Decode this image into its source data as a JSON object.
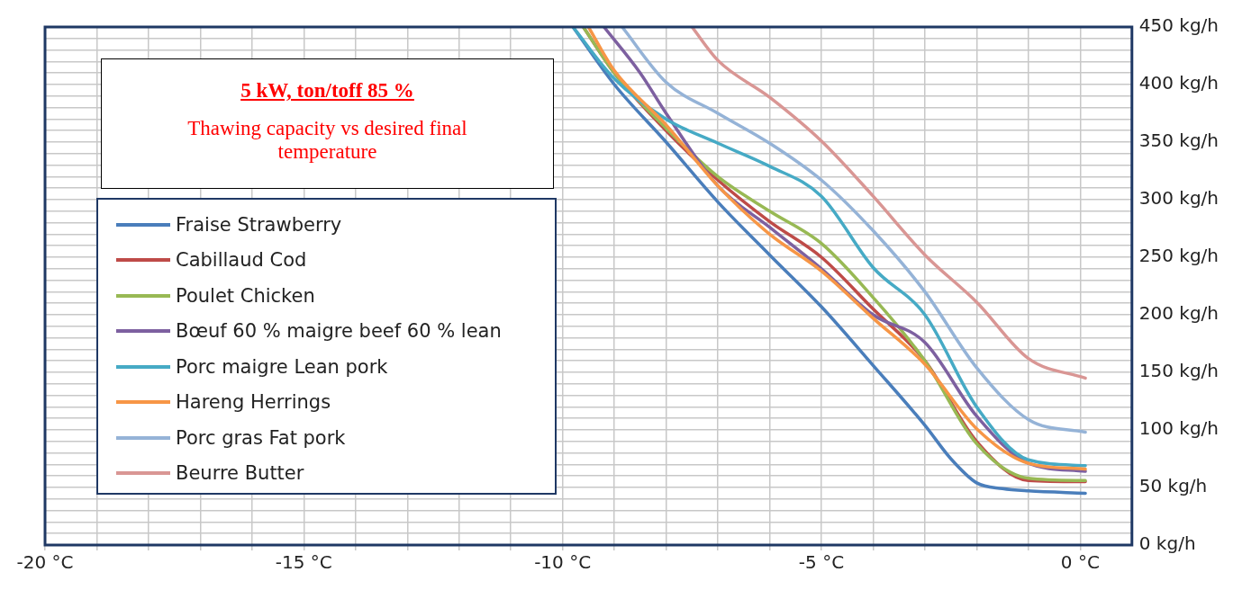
{
  "chart_data": {
    "type": "line",
    "title": "5 kW,  ton/toff 85 %",
    "subtitle": "Thawing capacity vs desired final temperature",
    "xlim": [
      -20,
      1
    ],
    "ylim": [
      0,
      450
    ],
    "xticks": [
      {
        "value": -20,
        "label": "-20 °C"
      },
      {
        "value": -19,
        "label": null
      },
      {
        "value": -18,
        "label": null
      },
      {
        "value": -17,
        "label": null
      },
      {
        "value": -16,
        "label": null
      },
      {
        "value": -15,
        "label": "-15 °C"
      },
      {
        "value": -14,
        "label": null
      },
      {
        "value": -13,
        "label": null
      },
      {
        "value": -12,
        "label": null
      },
      {
        "value": -11,
        "label": null
      },
      {
        "value": -10,
        "label": "-10 °C"
      },
      {
        "value": -9,
        "label": null
      },
      {
        "value": -8,
        "label": null
      },
      {
        "value": -7,
        "label": null
      },
      {
        "value": -6,
        "label": null
      },
      {
        "value": -5,
        "label": "-5 °C"
      },
      {
        "value": -4,
        "label": null
      },
      {
        "value": -3,
        "label": null
      },
      {
        "value": -2,
        "label": null
      },
      {
        "value": -1,
        "label": null
      },
      {
        "value": 0,
        "label": "0 °C"
      }
    ],
    "yticks": [
      {
        "value": 0,
        "label": "0 kg/h"
      },
      {
        "value": 10,
        "label": null
      },
      {
        "value": 20,
        "label": null
      },
      {
        "value": 30,
        "label": null
      },
      {
        "value": 40,
        "label": null
      },
      {
        "value": 50,
        "label": "50 kg/h"
      },
      {
        "value": 60,
        "label": null
      },
      {
        "value": 70,
        "label": null
      },
      {
        "value": 80,
        "label": null
      },
      {
        "value": 90,
        "label": null
      },
      {
        "value": 100,
        "label": "100 kg/h"
      },
      {
        "value": 110,
        "label": null
      },
      {
        "value": 120,
        "label": null
      },
      {
        "value": 130,
        "label": null
      },
      {
        "value": 140,
        "label": null
      },
      {
        "value": 150,
        "label": "150 kg/h"
      },
      {
        "value": 160,
        "label": null
      },
      {
        "value": 170,
        "label": null
      },
      {
        "value": 180,
        "label": null
      },
      {
        "value": 190,
        "label": null
      },
      {
        "value": 200,
        "label": "200 kg/h"
      },
      {
        "value": 210,
        "label": null
      },
      {
        "value": 220,
        "label": null
      },
      {
        "value": 230,
        "label": null
      },
      {
        "value": 240,
        "label": null
      },
      {
        "value": 250,
        "label": "250 kg/h"
      },
      {
        "value": 260,
        "label": null
      },
      {
        "value": 270,
        "label": null
      },
      {
        "value": 280,
        "label": null
      },
      {
        "value": 290,
        "label": null
      },
      {
        "value": 300,
        "label": "300 kg/h"
      },
      {
        "value": 310,
        "label": null
      },
      {
        "value": 320,
        "label": null
      },
      {
        "value": 330,
        "label": null
      },
      {
        "value": 340,
        "label": null
      },
      {
        "value": 350,
        "label": "350 kg/h"
      },
      {
        "value": 360,
        "label": null
      },
      {
        "value": 370,
        "label": null
      },
      {
        "value": 380,
        "label": null
      },
      {
        "value": 390,
        "label": null
      },
      {
        "value": 400,
        "label": "400 kg/h"
      },
      {
        "value": 410,
        "label": null
      },
      {
        "value": 420,
        "label": null
      },
      {
        "value": 430,
        "label": null
      },
      {
        "value": 440,
        "label": null
      },
      {
        "value": 450,
        "label": "450 kg/h"
      }
    ],
    "grid": true,
    "legend": "left",
    "marker": "none",
    "line_style": "solid",
    "series": [
      {
        "name": "Fraise Strawberry",
        "color": "#4a7ebb",
        "x": [
          -9.8,
          -9,
          -8,
          -7,
          -6,
          -5,
          -4,
          -3,
          -2.5,
          -2,
          -1.5,
          -1,
          0.1
        ],
        "values": [
          450,
          400,
          350,
          298,
          252,
          207,
          156,
          104,
          75,
          54,
          49,
          47,
          45
        ]
      },
      {
        "name": "Cabillaud Cod",
        "color": "#be4b48",
        "x": [
          -9.6,
          -9,
          -8,
          -7,
          -6,
          -5,
          -4,
          -3,
          -2,
          -1,
          0.1
        ],
        "values": [
          450,
          410,
          360,
          317,
          281,
          250,
          205,
          160,
          90,
          56,
          55
        ]
      },
      {
        "name": "Poulet Chicken",
        "color": "#98b954",
        "x": [
          -9.6,
          -9,
          -8,
          -7,
          -6,
          -5,
          -4,
          -3,
          -2,
          -1,
          0.1
        ],
        "values": [
          450,
          410,
          362,
          320,
          290,
          262,
          215,
          160,
          88,
          58,
          56
        ]
      },
      {
        "name": "Bœuf 60 % maigre  beef 60 % lean",
        "color": "#7d60a0",
        "x": [
          -9.2,
          -8.5,
          -8,
          -7,
          -6,
          -5,
          -4,
          -3,
          -2,
          -1,
          0.1
        ],
        "values": [
          450,
          410,
          375,
          312,
          276,
          240,
          200,
          176,
          112,
          71,
          64
        ]
      },
      {
        "name": "Porc maigre Lean pork",
        "color": "#46aac5",
        "x": [
          -9.8,
          -9,
          -8,
          -7,
          -6,
          -5,
          -4,
          -3,
          -2,
          -1,
          0.1
        ],
        "values": [
          450,
          405,
          370,
          349,
          329,
          303,
          241,
          200,
          120,
          74,
          69
        ]
      },
      {
        "name": "Hareng Herrings",
        "color": "#f79646",
        "x": [
          -9.5,
          -9,
          -8,
          -7,
          -6,
          -5,
          -4,
          -3,
          -2,
          -1,
          0.1
        ],
        "values": [
          450,
          412,
          365,
          312,
          270,
          238,
          197,
          157,
          101,
          71,
          66
        ]
      },
      {
        "name": "Porc gras Fat pork",
        "color": "#95b3d7",
        "x": [
          -8.85,
          -8,
          -7,
          -6,
          -5,
          -4,
          -3,
          -2,
          -1,
          0.1
        ],
        "values": [
          450,
          402,
          375,
          349,
          317,
          273,
          220,
          154,
          109,
          98
        ]
      },
      {
        "name": "Beurre Butter",
        "color": "#d99694",
        "x": [
          -7.5,
          -7,
          -6,
          -5,
          -4,
          -3,
          -2,
          -1,
          0.1
        ],
        "values": [
          450,
          421,
          389,
          351,
          303,
          252,
          211,
          162,
          145
        ]
      }
    ]
  }
}
